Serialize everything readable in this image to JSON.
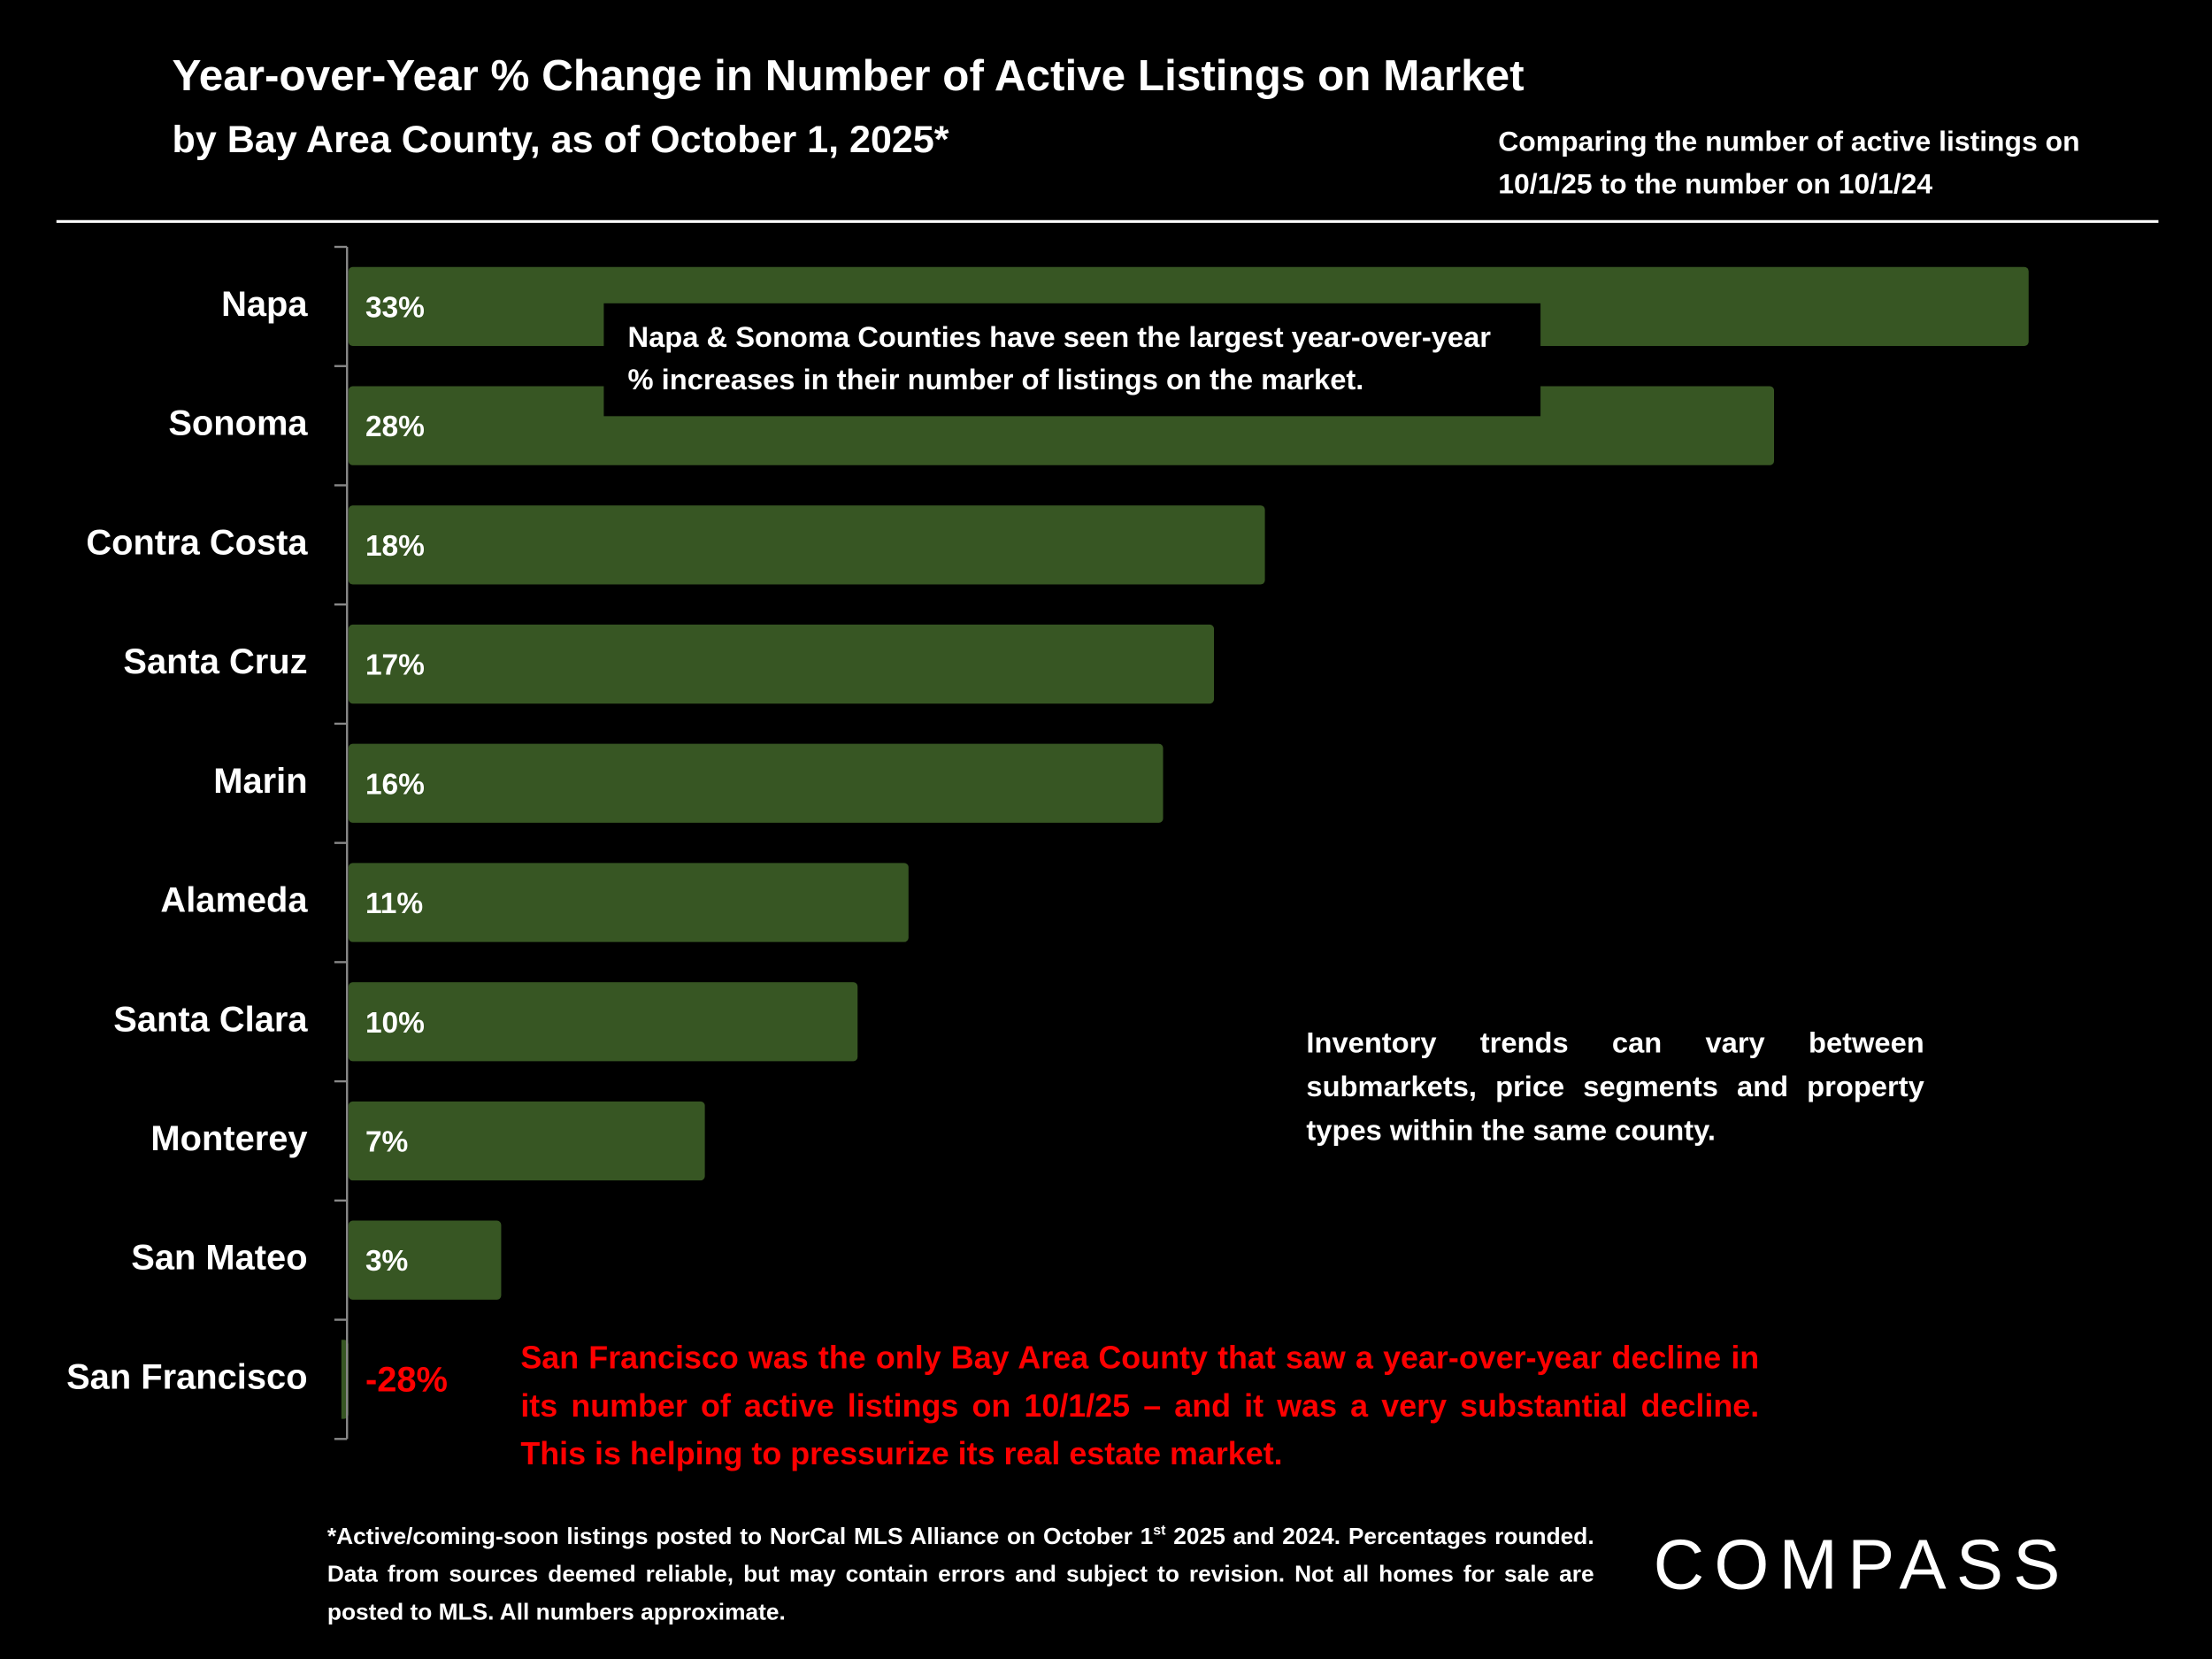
{
  "chart_data": {
    "type": "hbar",
    "title": "Year-over-Year % Change in Number of Active Listings on Market",
    "subtitle": "by Bay Area County, as of October 1, 2025*",
    "note": "Comparing the number of active listings on 10/1/25 to the number on 10/1/24",
    "categories": [
      "Napa",
      "Sonoma",
      "Contra Costa",
      "Santa Cruz",
      "Marin",
      "Alameda",
      "Santa Clara",
      "Monterey",
      "San Mateo",
      "San Francisco"
    ],
    "values": [
      33,
      28,
      18,
      17,
      16,
      11,
      10,
      7,
      3,
      -28
    ],
    "value_labels": [
      "33%",
      "28%",
      "18%",
      "17%",
      "16%",
      "11%",
      "10%",
      "7%",
      "3%",
      "-28%"
    ],
    "color": "#375623",
    "annotations": [
      "Napa & Sonoma Counties have seen the largest year-over-year % increases in their number of listings on the market.",
      "Inventory trends can vary between submarkets, price segments and property types within the same county.",
      "San Francisco was the only Bay Area County that saw a year-over-year decline in its number of active listings on 10/1/25 – and it was a very substantial decline. This is helping to pressurize its real estate market."
    ],
    "footnote": {
      "before": "*Active/coming-soon listings posted to NorCal MLS Alliance on October 1",
      "sup": "st",
      "after": " 2025 and 2024. Percentages rounded. Data from sources deemed reliable, but may contain errors and subject to revision. Not all homes for sale are posted to MLS. All numbers approximate."
    },
    "logo": "COMPASS"
  }
}
